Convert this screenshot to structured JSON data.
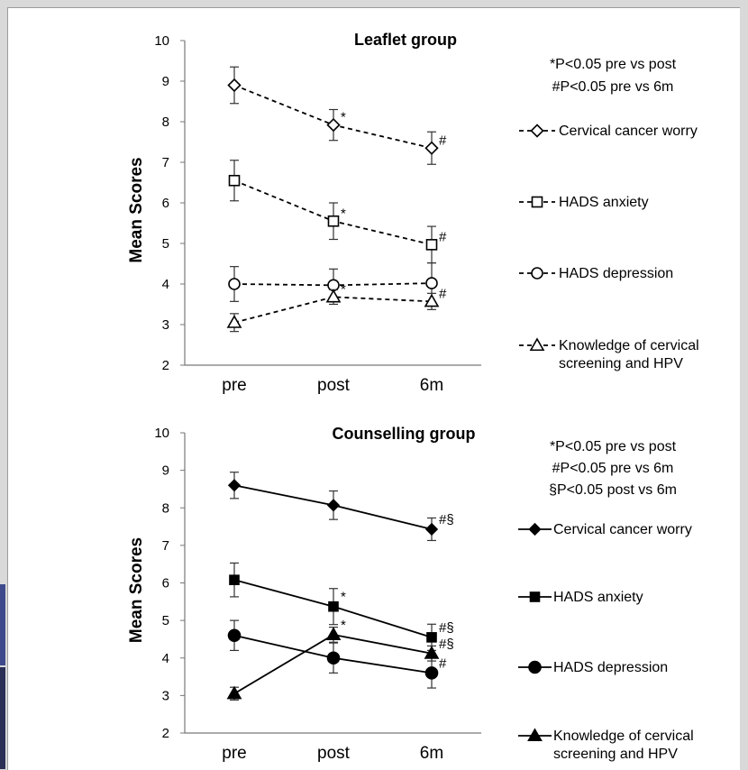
{
  "chart_data": [
    {
      "type": "line",
      "title": "Leaflet group",
      "ylabel": "Mean Scores",
      "xlabel": "",
      "categories": [
        "pre",
        "post",
        "6m"
      ],
      "ylim": [
        2,
        10
      ],
      "yticks": [
        2,
        3,
        4,
        5,
        6,
        7,
        8,
        9,
        10
      ],
      "line_style": "dashed",
      "significance_notes": [
        "*P<0.05 pre vs post",
        "#P<0.05 pre vs 6m"
      ],
      "series": [
        {
          "name": "Cervical cancer worry",
          "marker": "diamond-open",
          "values": [
            8.9,
            7.92,
            7.35
          ],
          "errors": [
            0.45,
            0.38,
            0.4
          ],
          "point_labels": [
            "",
            "*",
            "#"
          ]
        },
        {
          "name": "HADS anxiety",
          "marker": "square-open",
          "values": [
            6.55,
            5.55,
            4.97
          ],
          "errors": [
            0.5,
            0.45,
            0.45
          ],
          "point_labels": [
            "",
            "*",
            "#"
          ]
        },
        {
          "name": "HADS depression",
          "marker": "circle-open",
          "values": [
            4.0,
            3.97,
            4.02
          ],
          "errors": [
            0.43,
            0.4,
            0.5
          ],
          "point_labels": [
            "",
            "",
            ""
          ]
        },
        {
          "name": "Knowledge of cervical screening and HPV",
          "marker": "triangle-open",
          "values": [
            3.05,
            3.68,
            3.57
          ],
          "errors": [
            0.22,
            0.18,
            0.2
          ],
          "point_labels": [
            "",
            "*",
            "#"
          ]
        }
      ]
    },
    {
      "type": "line",
      "title": "Counselling group",
      "ylabel": "Mean Scores",
      "xlabel": "",
      "categories": [
        "pre",
        "post",
        "6m"
      ],
      "ylim": [
        2,
        10
      ],
      "yticks": [
        2,
        3,
        4,
        5,
        6,
        7,
        8,
        9,
        10
      ],
      "line_style": "solid",
      "significance_notes": [
        "*P<0.05 pre vs post",
        "#P<0.05 pre vs 6m",
        "§P<0.05 post vs 6m"
      ],
      "series": [
        {
          "name": "Cervical cancer worry",
          "marker": "diamond-filled",
          "values": [
            8.6,
            8.07,
            7.43
          ],
          "errors": [
            0.35,
            0.38,
            0.3
          ],
          "point_labels": [
            "",
            "",
            "#§"
          ]
        },
        {
          "name": "HADS anxiety",
          "marker": "square-filled",
          "values": [
            6.08,
            5.37,
            4.55
          ],
          "errors": [
            0.45,
            0.48,
            0.35
          ],
          "point_labels": [
            "",
            "*",
            "#§"
          ]
        },
        {
          "name": "HADS depression",
          "marker": "circle-filled",
          "values": [
            4.6,
            4.0,
            3.6
          ],
          "errors": [
            0.4,
            0.4,
            0.4
          ],
          "point_labels": [
            "",
            "",
            "#"
          ]
        },
        {
          "name": "Knowledge of cervical screening and HPV",
          "marker": "triangle-filled",
          "values": [
            3.05,
            4.62,
            4.12
          ],
          "errors": [
            0.17,
            0.2,
            0.2
          ],
          "point_labels": [
            "",
            "*",
            "#§"
          ]
        }
      ]
    }
  ]
}
